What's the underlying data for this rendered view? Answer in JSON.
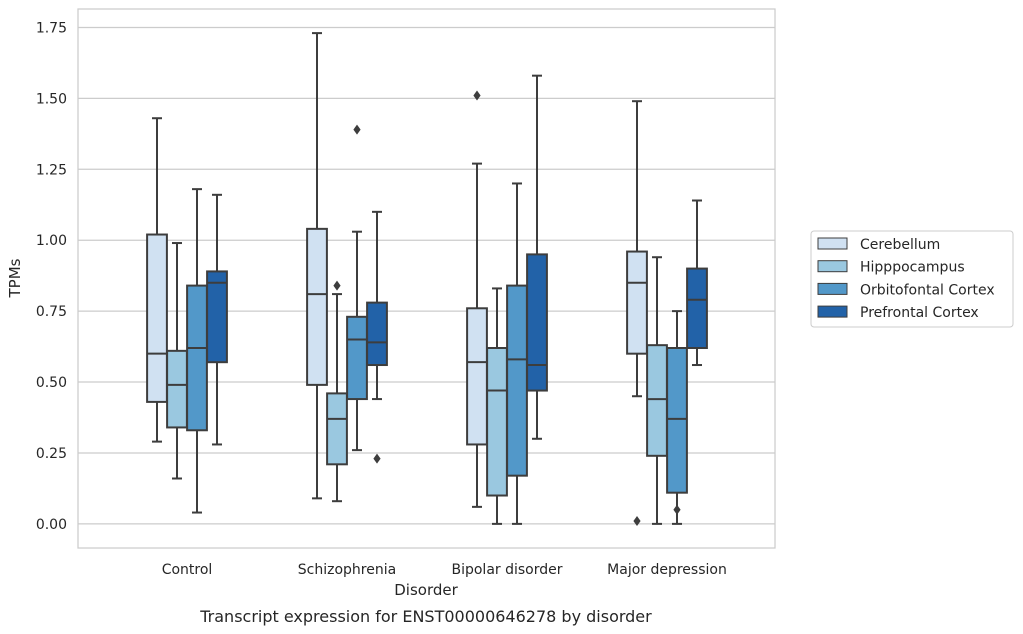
{
  "chart_data": {
    "type": "box",
    "caption": "Transcript expression for ENST00000646278 by disorder",
    "xlabel": "Disorder",
    "ylabel": "TPMs",
    "ylim": [
      -0.085,
      1.815
    ],
    "yticks": [
      0.0,
      0.25,
      0.5,
      0.75,
      1.0,
      1.25,
      1.5,
      1.75
    ],
    "ytick_labels": [
      "0.00",
      "0.25",
      "0.50",
      "0.75",
      "1.00",
      "1.25",
      "1.50",
      "1.75"
    ],
    "grid": "horizontal",
    "legend_position": "right",
    "categories": [
      "Control",
      "Schizophrenia",
      "Bipolar disorder",
      "Major depression"
    ],
    "series": [
      {
        "name": "Cerebellum",
        "color": "#d0e1f2",
        "boxes": [
          {
            "whislo": 0.29,
            "q1": 0.43,
            "med": 0.6,
            "q3": 1.02,
            "whishi": 1.43,
            "fliers": []
          },
          {
            "whislo": 0.09,
            "q1": 0.49,
            "med": 0.81,
            "q3": 1.04,
            "whishi": 1.73,
            "fliers": []
          },
          {
            "whislo": 0.06,
            "q1": 0.28,
            "med": 0.57,
            "q3": 0.76,
            "whishi": 1.27,
            "fliers": [
              1.51
            ]
          },
          {
            "whislo": 0.45,
            "q1": 0.6,
            "med": 0.85,
            "q3": 0.96,
            "whishi": 1.49,
            "fliers": [
              0.01
            ]
          }
        ]
      },
      {
        "name": "Hipppocampus",
        "color": "#9ac8e0",
        "boxes": [
          {
            "whislo": 0.16,
            "q1": 0.34,
            "med": 0.49,
            "q3": 0.61,
            "whishi": 0.99,
            "fliers": []
          },
          {
            "whislo": 0.08,
            "q1": 0.21,
            "med": 0.37,
            "q3": 0.46,
            "whishi": 0.81,
            "fliers": [
              0.84
            ]
          },
          {
            "whislo": 0.0,
            "q1": 0.1,
            "med": 0.47,
            "q3": 0.62,
            "whishi": 0.83,
            "fliers": []
          },
          {
            "whislo": 0.0,
            "q1": 0.24,
            "med": 0.44,
            "q3": 0.63,
            "whishi": 0.94,
            "fliers": []
          }
        ]
      },
      {
        "name": "Orbitofontal Cortex",
        "color": "#5298c9",
        "boxes": [
          {
            "whislo": 0.04,
            "q1": 0.33,
            "med": 0.62,
            "q3": 0.84,
            "whishi": 1.18,
            "fliers": []
          },
          {
            "whislo": 0.26,
            "q1": 0.44,
            "med": 0.65,
            "q3": 0.73,
            "whishi": 1.03,
            "fliers": [
              1.39
            ]
          },
          {
            "whislo": 0.0,
            "q1": 0.17,
            "med": 0.58,
            "q3": 0.84,
            "whishi": 1.2,
            "fliers": []
          },
          {
            "whislo": 0.0,
            "q1": 0.11,
            "med": 0.37,
            "q3": 0.62,
            "whishi": 0.75,
            "fliers": [
              0.05
            ]
          }
        ]
      },
      {
        "name": "Prefrontal Cortex",
        "color": "#2262a8",
        "boxes": [
          {
            "whislo": 0.28,
            "q1": 0.57,
            "med": 0.85,
            "q3": 0.89,
            "whishi": 1.16,
            "fliers": []
          },
          {
            "whislo": 0.44,
            "q1": 0.56,
            "med": 0.64,
            "q3": 0.78,
            "whishi": 1.1,
            "fliers": [
              0.23
            ]
          },
          {
            "whislo": 0.3,
            "q1": 0.47,
            "med": 0.56,
            "q3": 0.95,
            "whishi": 1.58,
            "fliers": []
          },
          {
            "whislo": 0.56,
            "q1": 0.62,
            "med": 0.79,
            "q3": 0.9,
            "whishi": 1.14,
            "fliers": []
          }
        ]
      }
    ]
  }
}
